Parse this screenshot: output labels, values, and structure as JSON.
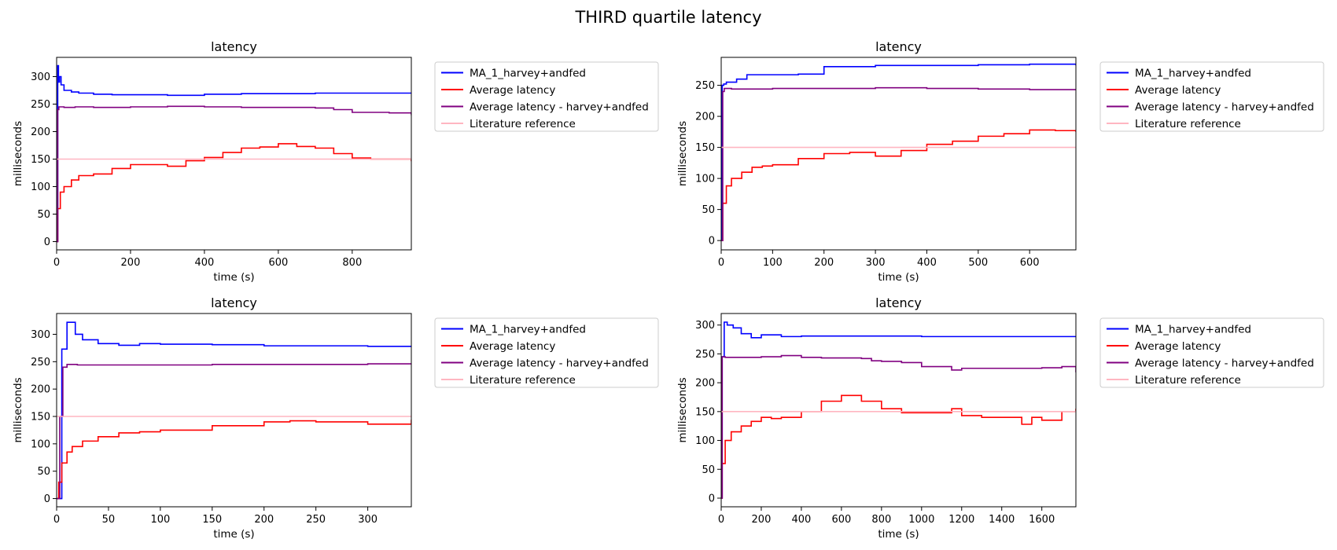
{
  "figure": {
    "title": "THIRD quartile latency"
  },
  "legend_colors": {
    "MA_1_harvey+andfed": "#0000ff",
    "Average latency": "#ff0000",
    "Average latency - harvey+andfed": "#800080",
    "Literature reference": "#ffb6c1"
  },
  "chart_data": [
    {
      "type": "line",
      "title": "latency",
      "xlabel": "time (s)",
      "ylabel": "milliseconds",
      "xlim": [
        0,
        960
      ],
      "ylim": [
        -15,
        335
      ],
      "xticks": [
        0,
        200,
        400,
        600,
        800
      ],
      "yticks": [
        0,
        50,
        100,
        150,
        200,
        250,
        300
      ],
      "legend_position": "outside-right-top",
      "series": [
        {
          "name": "MA_1_harvey+andfed",
          "color": "#0000ff",
          "x": [
            0,
            3,
            5,
            8,
            12,
            20,
            40,
            60,
            100,
            150,
            200,
            300,
            400,
            500,
            600,
            700,
            800,
            900,
            960
          ],
          "y": [
            0,
            320,
            290,
            300,
            285,
            275,
            272,
            270,
            268,
            267,
            267,
            266,
            268,
            269,
            269,
            270,
            270,
            270,
            270
          ]
        },
        {
          "name": "Average latency",
          "color": "#ff0000",
          "x": [
            0,
            3,
            10,
            20,
            40,
            60,
            80,
            100,
            150,
            200,
            250,
            300,
            350,
            400,
            450,
            500,
            550,
            600,
            650,
            700,
            750,
            800,
            850,
            900,
            960
          ],
          "y": [
            0,
            60,
            90,
            100,
            112,
            120,
            120,
            123,
            133,
            140,
            140,
            137,
            147,
            153,
            162,
            170,
            172,
            178,
            173,
            170,
            160,
            152,
            150,
            150,
            146
          ]
        },
        {
          "name": "Average latency - harvey+andfed",
          "color": "#800080",
          "x": [
            0,
            3,
            6,
            20,
            50,
            100,
            200,
            300,
            400,
            500,
            600,
            700,
            750,
            800,
            900,
            960
          ],
          "y": [
            0,
            240,
            245,
            244,
            245,
            244,
            245,
            246,
            245,
            244,
            244,
            243,
            240,
            235,
            234,
            230
          ]
        },
        {
          "name": "Literature reference",
          "color": "#ffb6c1",
          "x": [
            0,
            960
          ],
          "y": [
            150,
            150
          ]
        }
      ]
    },
    {
      "type": "line",
      "title": "latency",
      "xlabel": "time (s)",
      "ylabel": "milliseconds",
      "xlim": [
        0,
        690
      ],
      "ylim": [
        -15,
        295
      ],
      "xticks": [
        0,
        100,
        200,
        300,
        400,
        500,
        600
      ],
      "yticks": [
        0,
        50,
        100,
        150,
        200,
        250
      ],
      "legend_position": "outside-right-top",
      "series": [
        {
          "name": "MA_1_harvey+andfed",
          "color": "#0000ff",
          "x": [
            0,
            2,
            5,
            10,
            30,
            50,
            100,
            150,
            200,
            300,
            400,
            500,
            600,
            690
          ],
          "y": [
            0,
            250,
            252,
            255,
            260,
            267,
            267,
            268,
            280,
            282,
            282,
            283,
            284,
            282
          ]
        },
        {
          "name": "Average latency",
          "color": "#ff0000",
          "x": [
            0,
            3,
            10,
            20,
            40,
            60,
            80,
            100,
            150,
            200,
            250,
            300,
            350,
            400,
            450,
            500,
            550,
            600,
            650,
            690
          ],
          "y": [
            0,
            60,
            88,
            100,
            110,
            118,
            120,
            122,
            132,
            140,
            142,
            136,
            145,
            155,
            160,
            168,
            172,
            178,
            177,
            175
          ]
        },
        {
          "name": "Average latency - harvey+andfed",
          "color": "#800080",
          "x": [
            0,
            3,
            6,
            20,
            50,
            100,
            200,
            300,
            350,
            400,
            500,
            600,
            690
          ],
          "y": [
            0,
            240,
            245,
            244,
            244,
            245,
            245,
            246,
            246,
            245,
            244,
            243,
            242
          ]
        },
        {
          "name": "Literature reference",
          "color": "#ffb6c1",
          "x": [
            0,
            690
          ],
          "y": [
            150,
            150
          ]
        }
      ]
    },
    {
      "type": "line",
      "title": "latency",
      "xlabel": "time (s)",
      "ylabel": "milliseconds",
      "xlim": [
        0,
        342
      ],
      "ylim": [
        -15,
        338
      ],
      "xticks": [
        0,
        50,
        100,
        150,
        200,
        250,
        300
      ],
      "yticks": [
        0,
        50,
        100,
        150,
        200,
        250,
        300
      ],
      "legend_position": "outside-right-top",
      "series": [
        {
          "name": "MA_1_harvey+andfed",
          "color": "#0000ff",
          "x": [
            0,
            3,
            5,
            7,
            10,
            14,
            18,
            25,
            40,
            60,
            80,
            100,
            150,
            200,
            250,
            300,
            342
          ],
          "y": [
            0,
            0,
            273,
            273,
            322,
            322,
            300,
            290,
            283,
            280,
            283,
            282,
            281,
            279,
            279,
            278,
            278
          ]
        },
        {
          "name": "Average latency",
          "color": "#ff0000",
          "x": [
            0,
            2,
            5,
            10,
            15,
            25,
            40,
            60,
            80,
            100,
            150,
            200,
            225,
            250,
            300,
            342
          ],
          "y": [
            0,
            30,
            65,
            85,
            95,
            105,
            113,
            120,
            122,
            125,
            133,
            140,
            142,
            140,
            136,
            144
          ]
        },
        {
          "name": "Average latency - harvey+andfed",
          "color": "#800080",
          "x": [
            0,
            3,
            6,
            10,
            20,
            50,
            100,
            150,
            200,
            250,
            300,
            342
          ],
          "y": [
            0,
            150,
            240,
            245,
            244,
            244,
            244,
            245,
            245,
            245,
            246,
            246
          ]
        },
        {
          "name": "Literature reference",
          "color": "#ffb6c1",
          "x": [
            0,
            342
          ],
          "y": [
            150,
            150
          ]
        }
      ]
    },
    {
      "type": "line",
      "title": "latency",
      "xlabel": "time (s)",
      "ylabel": "milliseconds",
      "xlim": [
        0,
        1770
      ],
      "ylim": [
        -15,
        320
      ],
      "xticks": [
        0,
        200,
        400,
        600,
        800,
        1000,
        1200,
        1400,
        1600
      ],
      "yticks": [
        0,
        50,
        100,
        150,
        200,
        250,
        300
      ],
      "legend_position": "outside-right-top",
      "series": [
        {
          "name": "MA_1_harvey+andfed",
          "color": "#0000ff",
          "x": [
            0,
            5,
            15,
            30,
            60,
            100,
            150,
            200,
            300,
            400,
            600,
            800,
            1000,
            1200,
            1400,
            1600,
            1770
          ],
          "y": [
            0,
            245,
            305,
            300,
            295,
            285,
            278,
            283,
            280,
            281,
            281,
            281,
            280,
            280,
            280,
            280,
            280
          ]
        },
        {
          "name": "Average latency",
          "color": "#ff0000",
          "x": [
            0,
            5,
            20,
            50,
            100,
            150,
            200,
            250,
            300,
            400,
            500,
            600,
            650,
            700,
            800,
            900,
            1000,
            1100,
            1150,
            1200,
            1300,
            1400,
            1500,
            1550,
            1600,
            1700,
            1770
          ],
          "y": [
            0,
            60,
            100,
            115,
            125,
            133,
            140,
            138,
            140,
            150,
            168,
            178,
            178,
            168,
            155,
            148,
            148,
            148,
            155,
            143,
            140,
            140,
            128,
            140,
            135,
            150,
            155
          ]
        },
        {
          "name": "Average latency - harvey+andfed",
          "color": "#800080",
          "x": [
            0,
            5,
            20,
            100,
            200,
            300,
            400,
            500,
            600,
            700,
            750,
            800,
            900,
            1000,
            1100,
            1150,
            1200,
            1400,
            1600,
            1700,
            1765,
            1770
          ],
          "y": [
            0,
            245,
            244,
            244,
            245,
            247,
            244,
            243,
            243,
            242,
            238,
            237,
            235,
            228,
            228,
            222,
            225,
            225,
            226,
            228,
            228,
            218
          ]
        },
        {
          "name": "Literature reference",
          "color": "#ffb6c1",
          "x": [
            0,
            1770
          ],
          "y": [
            150,
            150
          ]
        }
      ]
    }
  ]
}
